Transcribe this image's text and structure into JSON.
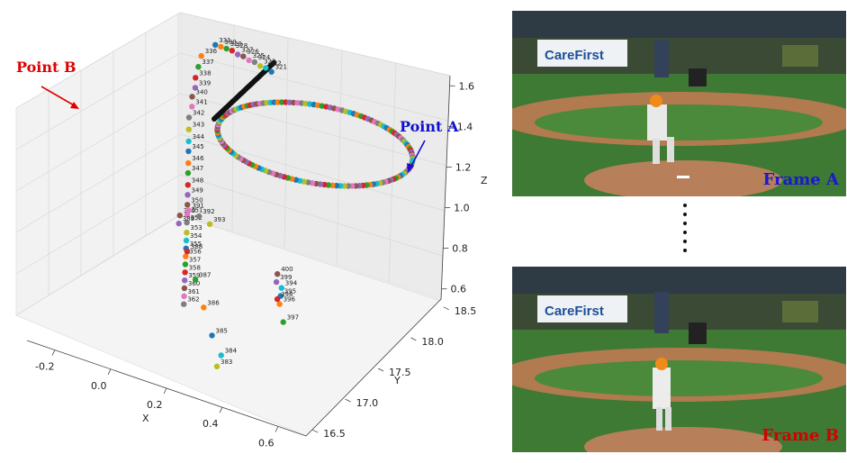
{
  "chart_data": {
    "type": "scatter3d",
    "xlabel": "X",
    "ylabel": "Y",
    "zlabel": "Z",
    "x_ticks": [
      "-0.2",
      "0.0",
      "0.2",
      "0.4",
      "0.6"
    ],
    "y_ticks": [
      "16.5",
      "17.0",
      "17.5",
      "18.0",
      "18.5"
    ],
    "z_ticks": [
      "0.6",
      "0.8",
      "1.0",
      "1.2",
      "1.4",
      "1.6"
    ],
    "xlim": [
      -0.3,
      0.7
    ],
    "ylim": [
      16.4,
      18.6
    ],
    "zlim": [
      0.55,
      1.65
    ],
    "grid": true,
    "palette": [
      "#1f77b4",
      "#ff7f0e",
      "#2ca02c",
      "#d62728",
      "#9467bd",
      "#8c564b",
      "#e377c2",
      "#7f7f7f",
      "#bcbd22",
      "#17becf"
    ],
    "labeled_points": [
      {
        "frame": "331",
        "x": -0.09,
        "y": 18.5,
        "z": 1.5
      },
      {
        "frame": "330",
        "x": -0.07,
        "y": 18.5,
        "z": 1.5
      },
      {
        "frame": "329",
        "x": -0.05,
        "y": 18.5,
        "z": 1.5
      },
      {
        "frame": "328",
        "x": -0.03,
        "y": 18.5,
        "z": 1.5
      },
      {
        "frame": "327",
        "x": -0.01,
        "y": 18.5,
        "z": 1.49
      },
      {
        "frame": "326",
        "x": 0.01,
        "y": 18.5,
        "z": 1.49
      },
      {
        "frame": "325",
        "x": 0.03,
        "y": 18.5,
        "z": 1.48
      },
      {
        "frame": "324",
        "x": 0.05,
        "y": 18.5,
        "z": 1.48
      },
      {
        "frame": "323",
        "x": 0.07,
        "y": 18.5,
        "z": 1.47
      },
      {
        "frame": "322",
        "x": 0.09,
        "y": 18.5,
        "z": 1.47
      },
      {
        "frame": "321",
        "x": 0.11,
        "y": 18.5,
        "z": 1.46
      },
      {
        "frame": "336",
        "x": -0.13,
        "y": 18.45,
        "z": 1.44
      },
      {
        "frame": "337",
        "x": -0.13,
        "y": 18.4,
        "z": 1.4
      },
      {
        "frame": "338",
        "x": -0.13,
        "y": 18.35,
        "z": 1.36
      },
      {
        "frame": "339",
        "x": -0.12,
        "y": 18.3,
        "z": 1.33
      },
      {
        "frame": "340",
        "x": -0.12,
        "y": 18.25,
        "z": 1.3
      },
      {
        "frame": "341",
        "x": -0.11,
        "y": 18.2,
        "z": 1.27
      },
      {
        "frame": "342",
        "x": -0.11,
        "y": 18.15,
        "z": 1.23
      },
      {
        "frame": "343",
        "x": -0.1,
        "y": 18.1,
        "z": 1.19
      },
      {
        "frame": "344",
        "x": -0.09,
        "y": 18.05,
        "z": 1.15
      },
      {
        "frame": "345",
        "x": -0.08,
        "y": 18.0,
        "z": 1.12
      },
      {
        "frame": "346",
        "x": -0.07,
        "y": 17.95,
        "z": 1.08
      },
      {
        "frame": "347",
        "x": -0.06,
        "y": 17.9,
        "z": 1.05
      },
      {
        "frame": "348",
        "x": -0.05,
        "y": 17.85,
        "z": 1.01
      },
      {
        "frame": "349",
        "x": -0.04,
        "y": 17.8,
        "z": 0.98
      },
      {
        "frame": "350",
        "x": -0.03,
        "y": 17.75,
        "z": 0.95
      },
      {
        "frame": "351",
        "x": -0.02,
        "y": 17.7,
        "z": 0.92
      },
      {
        "frame": "352",
        "x": -0.01,
        "y": 17.65,
        "z": 0.9
      },
      {
        "frame": "353",
        "x": 0.0,
        "y": 17.6,
        "z": 0.87
      },
      {
        "frame": "354",
        "x": 0.01,
        "y": 17.55,
        "z": 0.85
      },
      {
        "frame": "355",
        "x": 0.02,
        "y": 17.5,
        "z": 0.83
      },
      {
        "frame": "356",
        "x": 0.03,
        "y": 17.45,
        "z": 0.81
      },
      {
        "frame": "357",
        "x": 0.04,
        "y": 17.4,
        "z": 0.79
      },
      {
        "frame": "358",
        "x": 0.05,
        "y": 17.35,
        "z": 0.77
      },
      {
        "frame": "359",
        "x": 0.06,
        "y": 17.3,
        "z": 0.75
      },
      {
        "frame": "360",
        "x": 0.07,
        "y": 17.25,
        "z": 0.73
      },
      {
        "frame": "361",
        "x": 0.08,
        "y": 17.2,
        "z": 0.71
      },
      {
        "frame": "362",
        "x": 0.09,
        "y": 17.15,
        "z": 0.69
      },
      {
        "frame": "383",
        "x": 0.3,
        "y": 16.75,
        "z": 0.6
      },
      {
        "frame": "384",
        "x": 0.28,
        "y": 16.9,
        "z": 0.6
      },
      {
        "frame": "385",
        "x": 0.2,
        "y": 17.1,
        "z": 0.6
      },
      {
        "frame": "386",
        "x": 0.1,
        "y": 17.4,
        "z": 0.6
      },
      {
        "frame": "387",
        "x": 0.0,
        "y": 17.7,
        "z": 0.6
      },
      {
        "frame": "388",
        "x": -0.1,
        "y": 18.0,
        "z": 0.6
      },
      {
        "frame": "389",
        "x": -0.2,
        "y": 18.3,
        "z": 0.6
      },
      {
        "frame": "390",
        "x": -0.22,
        "y": 18.4,
        "z": 0.6
      },
      {
        "frame": "391",
        "x": -0.2,
        "y": 18.45,
        "z": 0.62
      },
      {
        "frame": "392",
        "x": -0.15,
        "y": 18.4,
        "z": 0.63
      },
      {
        "frame": "393",
        "x": -0.1,
        "y": 18.35,
        "z": 0.63
      },
      {
        "frame": "394",
        "x": 0.25,
        "y": 17.95,
        "z": 0.6
      },
      {
        "frame": "395",
        "x": 0.27,
        "y": 17.85,
        "z": 0.6
      },
      {
        "frame": "396",
        "x": 0.29,
        "y": 17.75,
        "z": 0.6
      },
      {
        "frame": "397",
        "x": 0.35,
        "y": 17.55,
        "z": 0.6
      },
      {
        "frame": "398",
        "x": 0.27,
        "y": 17.8,
        "z": 0.6
      },
      {
        "frame": "399",
        "x": 0.22,
        "y": 18.0,
        "z": 0.6
      },
      {
        "frame": "400",
        "x": 0.2,
        "y": 18.1,
        "z": 0.6
      }
    ]
  },
  "callouts": {
    "point_a": "Point A",
    "point_b": "Point B"
  },
  "frames": {
    "frame_a_label": "Frame A",
    "frame_b_label": "Frame B",
    "frame_a_color": "#1a1acc",
    "frame_b_color": "#d40000"
  },
  "colors": {
    "callout_a": "#1010d0",
    "callout_b": "#e00000"
  }
}
